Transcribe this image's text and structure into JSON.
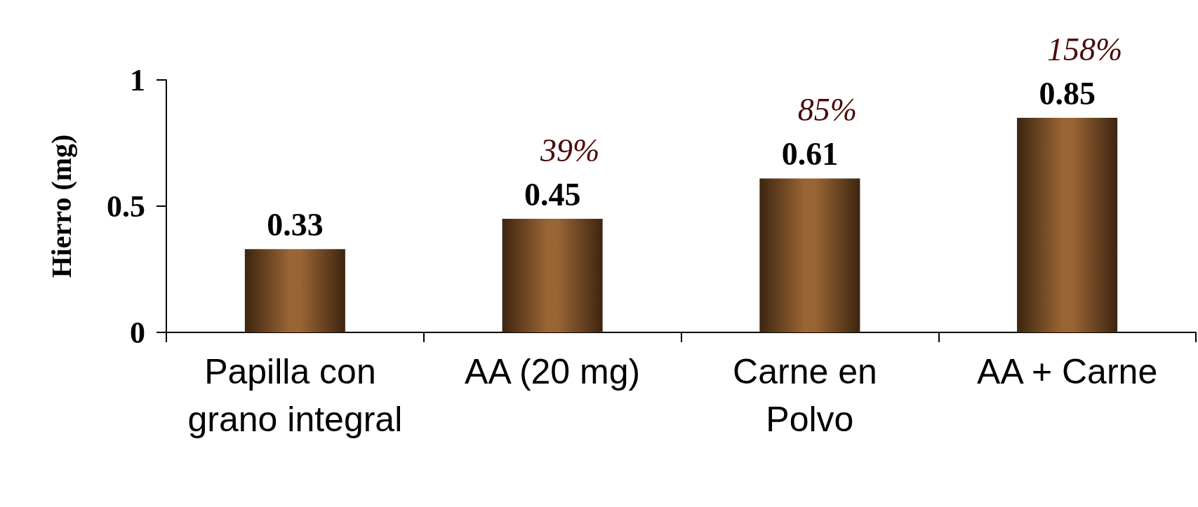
{
  "chart_data": {
    "type": "bar",
    "ylabel": "Hierro (mg)",
    "categories": [
      "Papilla con grano integral",
      "AA (20 mg)",
      "Carne en Polvo",
      "AA + Carne"
    ],
    "values": [
      0.33,
      0.45,
      0.61,
      0.85
    ],
    "color": "#9a6535",
    "ylim": [
      0,
      1
    ],
    "yticks": [
      0,
      0.5,
      1
    ],
    "grid": false,
    "data_labels": true,
    "annotations": [
      {
        "text": "39%",
        "x": "AA (20 mg)",
        "y": 0.45
      },
      {
        "text": "85%",
        "x": "Carne en Polvo",
        "y": 0.61
      },
      {
        "text": "158%",
        "x": "AA + Carne",
        "y": 0.85
      }
    ]
  }
}
